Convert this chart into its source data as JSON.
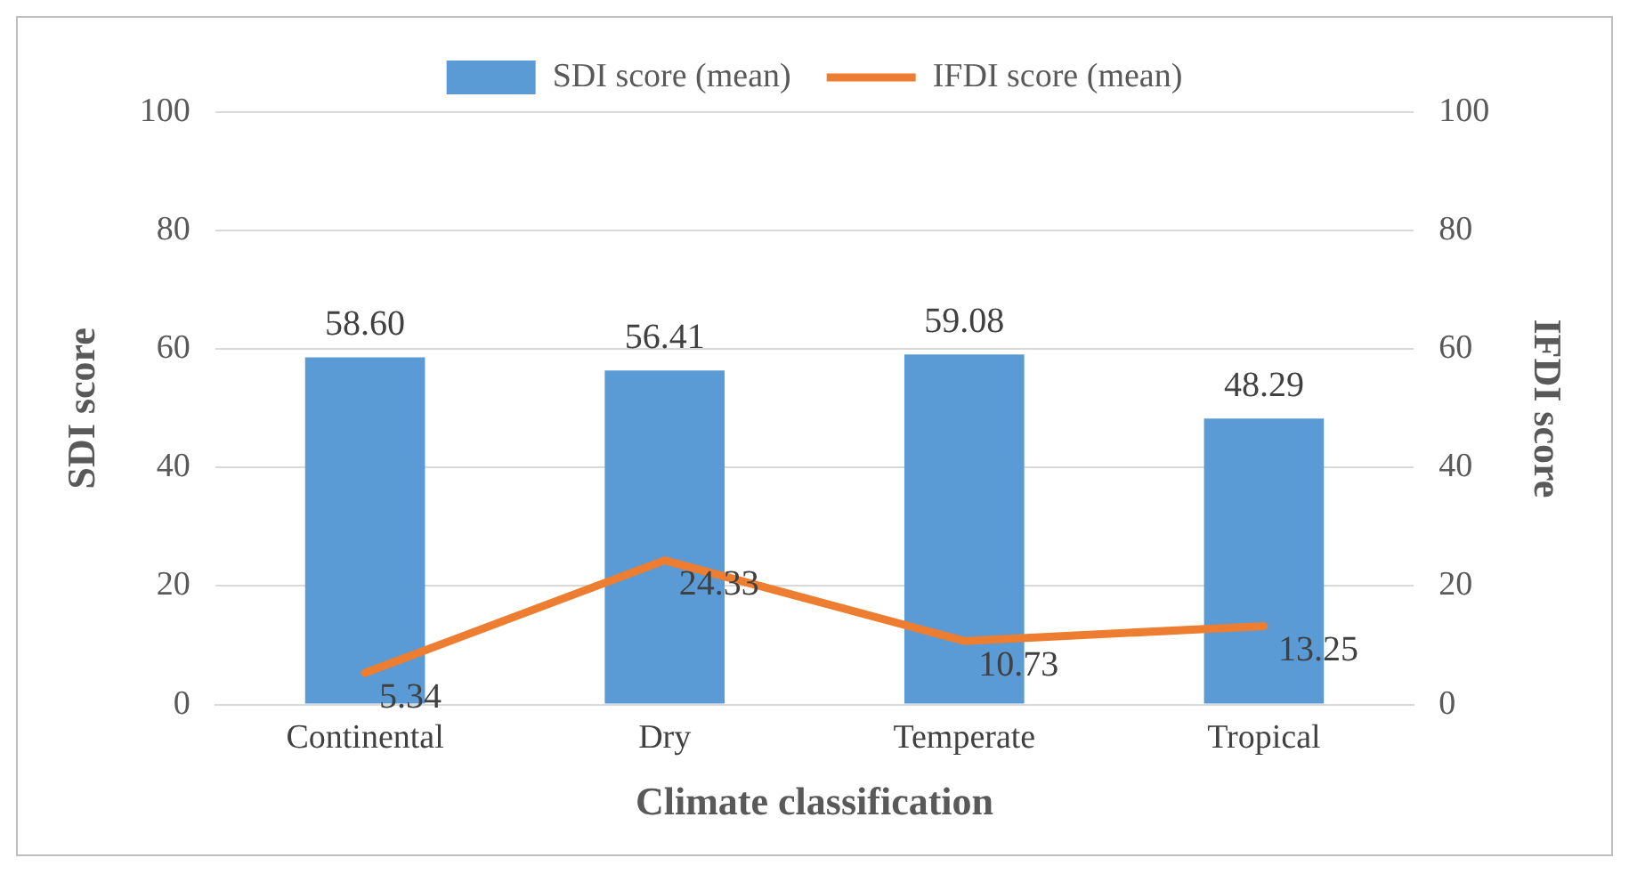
{
  "chart_data": {
    "type": "bar",
    "xlabel": "Climate classification",
    "ylabel": "SDI score",
    "y2label": "IFDI score",
    "categories": [
      "Continental",
      "Dry",
      "Temperate",
      "Tropical"
    ],
    "series": [
      {
        "name": "SDI score (mean)",
        "color": "#5b9bd5",
        "values": [
          58.6,
          56.41,
          59.08,
          48.29
        ],
        "value_labels": [
          "58.60",
          "56.41",
          "59.08",
          "48.29"
        ]
      },
      {
        "name": "IFDI score (mean)",
        "type": "line",
        "axis": "y2",
        "color": "#ed7d31",
        "values": [
          5.34,
          24.33,
          10.73,
          13.25
        ]
      }
    ],
    "ylim": [
      0,
      100
    ],
    "yticks": [
      0,
      20,
      40,
      60,
      80,
      100
    ],
    "y2lim": [
      0,
      100
    ],
    "y2ticks": [
      0,
      20,
      40,
      60,
      80,
      100
    ],
    "grid": "y",
    "legend": "top",
    "marker": "none",
    "line_style": "solid",
    "data_labels": true
  }
}
